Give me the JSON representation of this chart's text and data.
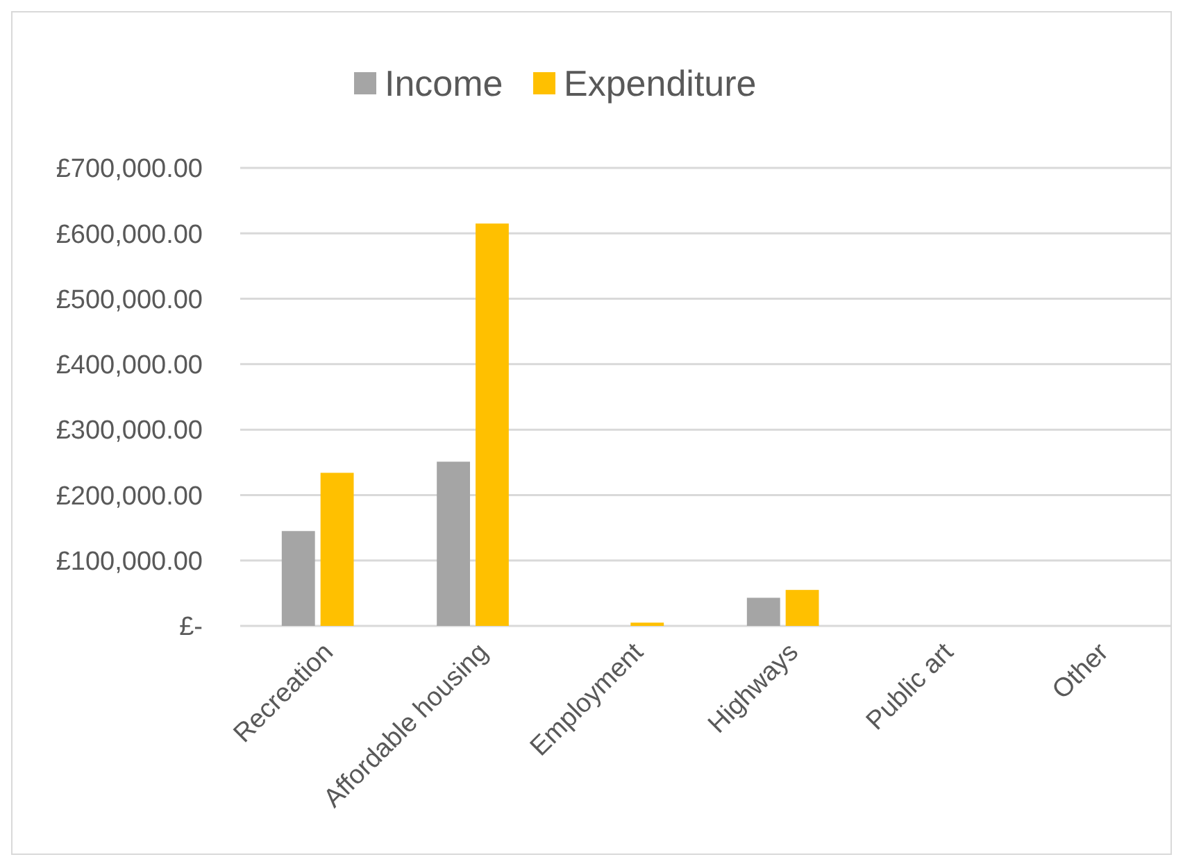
{
  "chart_data": {
    "type": "bar",
    "categories": [
      "Recreation",
      "Affordable housing",
      "Employment",
      "Highways",
      "Public art",
      "Other"
    ],
    "series": [
      {
        "name": "Income",
        "color": "#a5a5a5",
        "values": [
          145000,
          251000,
          0,
          43000,
          0,
          0
        ]
      },
      {
        "name": "Expenditure",
        "color": "#ffc000",
        "values": [
          234000,
          615000,
          5000,
          55000,
          0,
          0
        ]
      }
    ],
    "ylim": [
      0,
      700000
    ],
    "yticks": [
      {
        "value": 0,
        "label": "£-"
      },
      {
        "value": 100000,
        "label": "£100,000.00"
      },
      {
        "value": 200000,
        "label": "£200,000.00"
      },
      {
        "value": 300000,
        "label": "£300,000.00"
      },
      {
        "value": 400000,
        "label": "£400,000.00"
      },
      {
        "value": 500000,
        "label": "£500,000.00"
      },
      {
        "value": 600000,
        "label": "£600,000.00"
      },
      {
        "value": 700000,
        "label": "£700,000.00"
      }
    ],
    "grid": "y",
    "legend": "top"
  }
}
